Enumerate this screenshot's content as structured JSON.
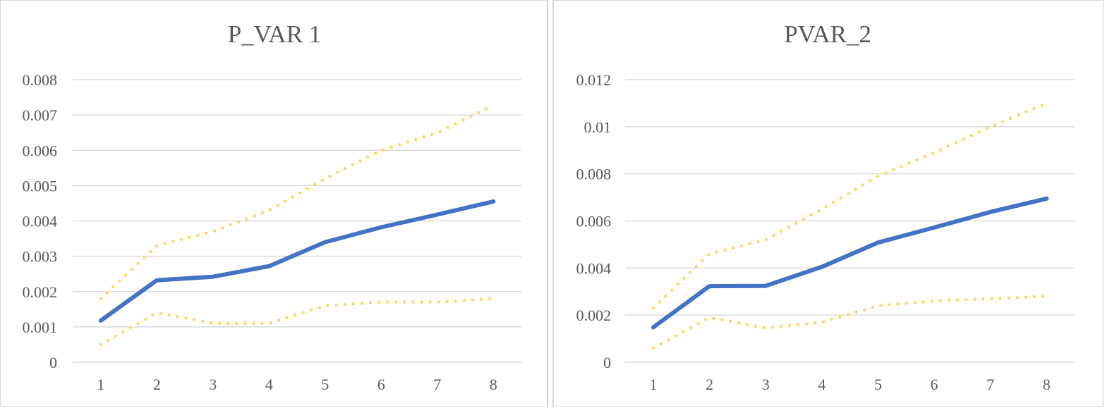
{
  "colors": {
    "main": "#4472c4",
    "bound": "#ffd966",
    "grid": "#d9d9d9",
    "text": "#595959"
  },
  "chart_data": [
    {
      "type": "line",
      "title": "P_VAR 1",
      "categories": [
        "1",
        "2",
        "3",
        "4",
        "5",
        "6",
        "7",
        "8"
      ],
      "ylim": [
        0,
        0.008
      ],
      "yticks": [
        "0",
        "0.001",
        "0.002",
        "0.003",
        "0.004",
        "0.005",
        "0.006",
        "0.007",
        "0.008"
      ],
      "grid": true,
      "series": [
        {
          "style": "solid",
          "values": [
            0.00118,
            0.00232,
            0.00242,
            0.00272,
            0.0034,
            0.00382,
            0.00418,
            0.00455
          ]
        },
        {
          "style": "dotted",
          "values": [
            0.0018,
            0.0033,
            0.0037,
            0.0043,
            0.0052,
            0.006,
            0.0065,
            0.00727
          ]
        },
        {
          "style": "dotted",
          "values": [
            0.0005,
            0.0014,
            0.0011,
            0.0011,
            0.0016,
            0.0017,
            0.0017,
            0.0018
          ]
        }
      ]
    },
    {
      "type": "line",
      "title": "PVAR_2",
      "categories": [
        "1",
        "2",
        "3",
        "4",
        "5",
        "6",
        "7",
        "8"
      ],
      "ylim": [
        0,
        0.012
      ],
      "yticks": [
        "0",
        "0.002",
        "0.004",
        "0.006",
        "0.008",
        "0.01",
        "0.012"
      ],
      "grid": true,
      "series": [
        {
          "style": "solid",
          "values": [
            0.00148,
            0.00323,
            0.00324,
            0.00405,
            0.00508,
            0.00572,
            0.00638,
            0.00695
          ]
        },
        {
          "style": "dotted",
          "values": [
            0.0023,
            0.0046,
            0.0052,
            0.0065,
            0.0079,
            0.0089,
            0.01,
            0.011
          ]
        },
        {
          "style": "dotted",
          "values": [
            0.0006,
            0.0019,
            0.00145,
            0.0017,
            0.0024,
            0.0026,
            0.0027,
            0.0028
          ]
        }
      ]
    }
  ]
}
